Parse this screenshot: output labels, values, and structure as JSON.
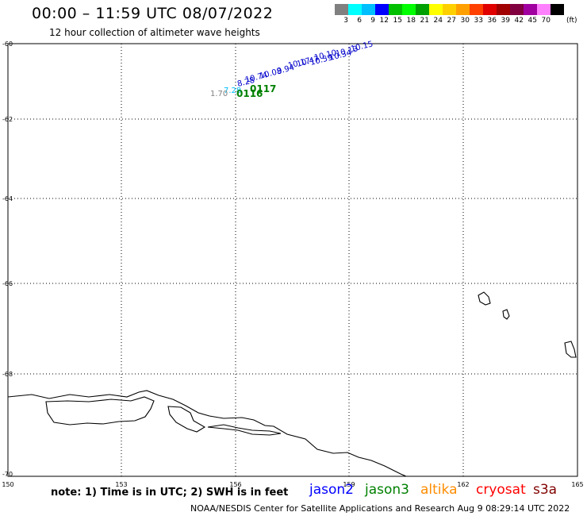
{
  "header": {
    "title": "00:00 – 11:59 UTC 08/07/2022",
    "subtitle": "12 hour collection of altimeter wave heights"
  },
  "color_scale": {
    "colors": [
      "#808080",
      "#00ffff",
      "#00bfff",
      "#0000ff",
      "#00c000",
      "#00ff00",
      "#00a000",
      "#ffff00",
      "#ffd000",
      "#ffa000",
      "#ff4000",
      "#e00000",
      "#a00000",
      "#800040",
      "#a000a0",
      "#ff80ff",
      "#000000"
    ],
    "labels": [
      "3",
      "6",
      "9",
      "12",
      "15",
      "18",
      "21",
      "24",
      "27",
      "30",
      "33",
      "36",
      "39",
      "42",
      "45",
      "70"
    ],
    "unit": "(ft)"
  },
  "axes": {
    "lat_labels": [
      "-60",
      "-62",
      "-64",
      "-66",
      "-68",
      "-70"
    ],
    "lon_labels": [
      "150",
      "153",
      "156",
      "159",
      "162",
      "165"
    ]
  },
  "track_labels": {
    "jason2": [
      "10.15",
      "10.13",
      "10.34",
      "10.10",
      "10.59",
      "10.47",
      "10.17",
      "9.94",
      "10.08",
      "10.74",
      "8.28"
    ],
    "cyan": [
      "7.28"
    ],
    "gray": [
      "1.70"
    ],
    "jason3": [
      "0117",
      "0116"
    ]
  },
  "note": "note: 1) Time is in UTC; 2) SWH is in feet",
  "legend": [
    {
      "name": "jason2",
      "color": "#0000ff"
    },
    {
      "name": "jason3",
      "color": "#008000"
    },
    {
      "name": "altika",
      "color": "#ff8c00"
    },
    {
      "name": "cryosat",
      "color": "#ff0000"
    },
    {
      "name": "s3a",
      "color": "#800000"
    }
  ],
  "footer": "NOAA/NESDIS Center for Satellite Applications and Research    Aug  9 08:29:14 UTC 2022"
}
